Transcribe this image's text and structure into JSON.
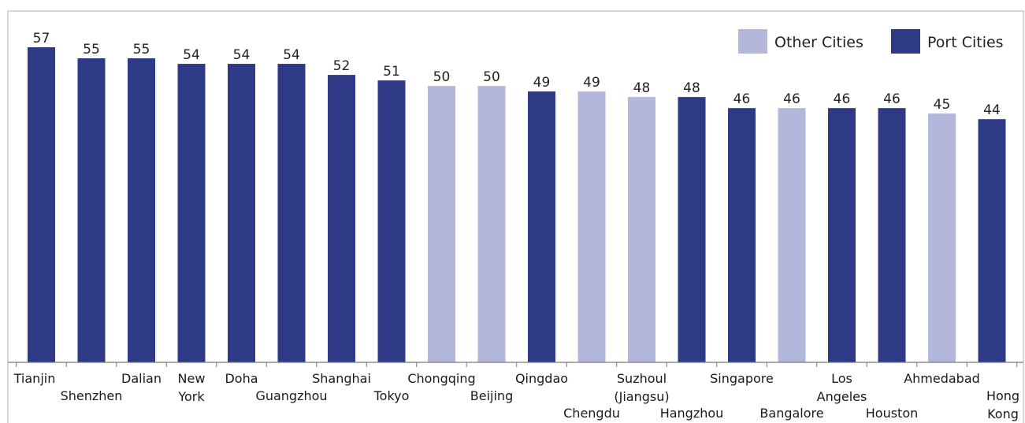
{
  "chart_data": {
    "type": "bar",
    "title": "",
    "xlabel": "",
    "ylabel": "",
    "ylim": [
      0,
      60
    ],
    "grid": false,
    "legend_placement": "top-right",
    "categories": [
      {
        "lines": [
          "Tianjin"
        ],
        "stagger": 0
      },
      {
        "lines": [
          "Shenzhen"
        ],
        "stagger": 1
      },
      {
        "lines": [
          "Dalian"
        ],
        "stagger": 0
      },
      {
        "lines": [
          "New",
          "York"
        ],
        "stagger": 0
      },
      {
        "lines": [
          "Doha"
        ],
        "stagger": 0
      },
      {
        "lines": [
          "Guangzhou"
        ],
        "stagger": 1
      },
      {
        "lines": [
          "Shanghai"
        ],
        "stagger": 0
      },
      {
        "lines": [
          "Tokyo"
        ],
        "stagger": 1
      },
      {
        "lines": [
          "Chongqing"
        ],
        "stagger": 0
      },
      {
        "lines": [
          "Beijing"
        ],
        "stagger": 1
      },
      {
        "lines": [
          "Qingdao"
        ],
        "stagger": 0
      },
      {
        "lines": [
          "Chengdu"
        ],
        "stagger": 2
      },
      {
        "lines": [
          "Suzhoul",
          "(Jiangsu)"
        ],
        "stagger": 0
      },
      {
        "lines": [
          "Hangzhou"
        ],
        "stagger": 2
      },
      {
        "lines": [
          "Singapore"
        ],
        "stagger": 0
      },
      {
        "lines": [
          "Bangalore"
        ],
        "stagger": 2
      },
      {
        "lines": [
          "Los",
          "Angeles"
        ],
        "stagger": 0
      },
      {
        "lines": [
          "Houston"
        ],
        "stagger": 2
      },
      {
        "lines": [
          "Ahmedabad"
        ],
        "stagger": 0
      },
      {
        "lines": [
          "Hong",
          "Kong"
        ],
        "stagger": 1
      }
    ],
    "values": [
      57,
      55,
      55,
      54,
      54,
      54,
      52,
      51,
      50,
      50,
      49,
      49,
      48,
      48,
      46,
      46,
      46,
      46,
      45,
      44
    ],
    "groups": [
      "port",
      "port",
      "port",
      "port",
      "port",
      "port",
      "port",
      "port",
      "other",
      "other",
      "port",
      "other",
      "other",
      "port",
      "port",
      "other",
      "port",
      "port",
      "other",
      "port"
    ],
    "series": [
      {
        "key": "other",
        "name": "Other Cities",
        "color": "#b3b7dc"
      },
      {
        "key": "port",
        "name": "Port Cities",
        "color": "#2e3a85"
      }
    ]
  }
}
